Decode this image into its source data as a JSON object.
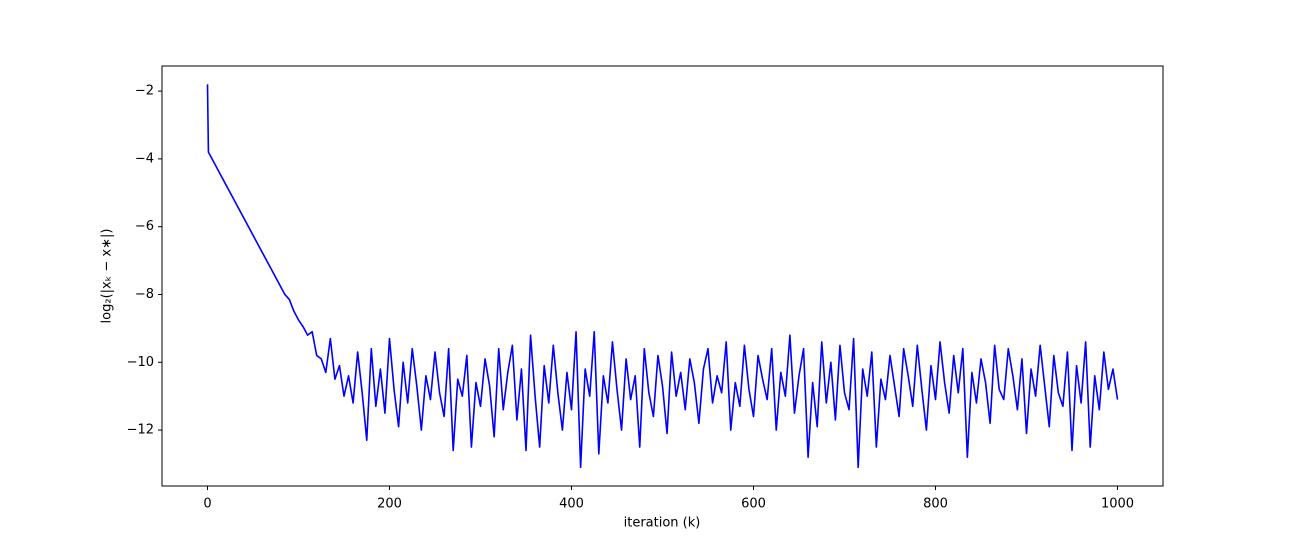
{
  "chart_data": {
    "type": "line",
    "xlabel": "iteration (k)",
    "ylabel": "log₂(|xₖ − x∗|)",
    "xlim": [
      -50,
      1050
    ],
    "ylim": [
      -13.65,
      -1.26
    ],
    "xticks": [
      0,
      200,
      400,
      600,
      800,
      1000
    ],
    "yticks": [
      {
        "value": -12,
        "label": "−12"
      },
      {
        "value": -10,
        "label": "−10"
      },
      {
        "value": -8,
        "label": "−8"
      },
      {
        "value": -6,
        "label": "−6"
      },
      {
        "value": -4,
        "label": "−4"
      },
      {
        "value": -2,
        "label": "−2"
      }
    ],
    "grid": false,
    "x": [
      0,
      1,
      5,
      10,
      15,
      20,
      25,
      30,
      35,
      40,
      45,
      50,
      55,
      60,
      65,
      70,
      75,
      80,
      85,
      90,
      95,
      100,
      105,
      110,
      115,
      120,
      125,
      130,
      135,
      140,
      145,
      150,
      155,
      160,
      165,
      170,
      175,
      180,
      185,
      190,
      195,
      200,
      205,
      210,
      215,
      220,
      225,
      230,
      235,
      240,
      245,
      250,
      255,
      260,
      265,
      270,
      275,
      280,
      285,
      290,
      295,
      300,
      305,
      310,
      315,
      320,
      325,
      330,
      335,
      340,
      345,
      350,
      355,
      360,
      365,
      370,
      375,
      380,
      385,
      390,
      395,
      400,
      405,
      410,
      415,
      420,
      425,
      430,
      435,
      440,
      445,
      450,
      455,
      460,
      465,
      470,
      475,
      480,
      485,
      490,
      495,
      500,
      505,
      510,
      515,
      520,
      525,
      530,
      535,
      540,
      545,
      550,
      555,
      560,
      565,
      570,
      575,
      580,
      585,
      590,
      595,
      600,
      605,
      610,
      615,
      620,
      625,
      630,
      635,
      640,
      645,
      650,
      655,
      660,
      665,
      670,
      675,
      680,
      685,
      690,
      695,
      700,
      705,
      710,
      715,
      720,
      725,
      730,
      735,
      740,
      745,
      750,
      755,
      760,
      765,
      770,
      775,
      780,
      785,
      790,
      795,
      800,
      805,
      810,
      815,
      820,
      825,
      830,
      835,
      840,
      845,
      850,
      855,
      860,
      865,
      870,
      875,
      880,
      885,
      890,
      895,
      900,
      905,
      910,
      915,
      920,
      925,
      930,
      935,
      940,
      945,
      950,
      955,
      960,
      965,
      970,
      975,
      980,
      985,
      990,
      995,
      1000
    ],
    "series": [
      {
        "color": "#0000ff",
        "values": [
          -1.8,
          -3.8,
          -4.0,
          -4.25,
          -4.5,
          -4.75,
          -5.0,
          -5.25,
          -5.5,
          -5.75,
          -6.0,
          -6.25,
          -6.5,
          -6.75,
          -7.0,
          -7.25,
          -7.5,
          -7.75,
          -8.0,
          -8.15,
          -8.5,
          -8.75,
          -8.95,
          -9.2,
          -9.1,
          -9.8,
          -9.9,
          -10.3,
          -9.3,
          -10.5,
          -10.1,
          -11.0,
          -10.4,
          -11.2,
          -9.7,
          -10.9,
          -12.3,
          -9.6,
          -11.3,
          -10.2,
          -11.5,
          -9.3,
          -10.8,
          -11.9,
          -10.0,
          -11.2,
          -9.6,
          -10.7,
          -12.0,
          -10.4,
          -11.1,
          -9.7,
          -10.9,
          -11.6,
          -9.6,
          -12.6,
          -10.5,
          -11.0,
          -9.8,
          -12.5,
          -10.6,
          -11.3,
          -9.9,
          -10.7,
          -12.2,
          -9.6,
          -11.4,
          -10.3,
          -9.5,
          -11.7,
          -10.2,
          -12.6,
          -9.2,
          -11.0,
          -12.5,
          -10.1,
          -11.2,
          -9.5,
          -10.9,
          -12.0,
          -10.3,
          -11.4,
          -9.1,
          -13.1,
          -10.2,
          -11.0,
          -9.1,
          -12.7,
          -10.4,
          -11.2,
          -9.4,
          -10.8,
          -12.0,
          -9.9,
          -11.1,
          -10.4,
          -12.5,
          -9.6,
          -10.9,
          -11.6,
          -9.8,
          -10.7,
          -12.1,
          -9.7,
          -11.0,
          -10.3,
          -11.4,
          -9.9,
          -10.6,
          -11.8,
          -10.2,
          -9.6,
          -11.2,
          -10.4,
          -10.9,
          -9.4,
          -12.0,
          -10.6,
          -11.3,
          -9.5,
          -10.8,
          -11.6,
          -9.8,
          -10.5,
          -11.1,
          -9.6,
          -12.0,
          -10.3,
          -11.0,
          -9.2,
          -11.5,
          -10.4,
          -9.6,
          -12.8,
          -10.6,
          -11.9,
          -9.4,
          -11.2,
          -10.0,
          -11.7,
          -9.5,
          -10.9,
          -11.4,
          -9.3,
          -13.1,
          -10.2,
          -11.0,
          -9.7,
          -12.5,
          -10.5,
          -11.1,
          -9.8,
          -10.7,
          -11.6,
          -9.6,
          -10.4,
          -11.3,
          -9.5,
          -10.8,
          -12.0,
          -10.1,
          -11.1,
          -9.4,
          -10.6,
          -11.5,
          -9.8,
          -10.9,
          -9.6,
          -12.8,
          -10.3,
          -11.2,
          -9.9,
          -10.6,
          -11.8,
          -9.5,
          -10.8,
          -11.1,
          -9.6,
          -10.4,
          -11.4,
          -9.9,
          -12.1,
          -10.2,
          -11.0,
          -9.5,
          -10.7,
          -11.9,
          -9.8,
          -10.9,
          -11.3,
          -9.7,
          -12.6,
          -10.1,
          -11.2,
          -9.4,
          -12.5,
          -10.4,
          -11.4,
          -9.7,
          -10.8,
          -10.2,
          -11.1
        ]
      }
    ]
  }
}
